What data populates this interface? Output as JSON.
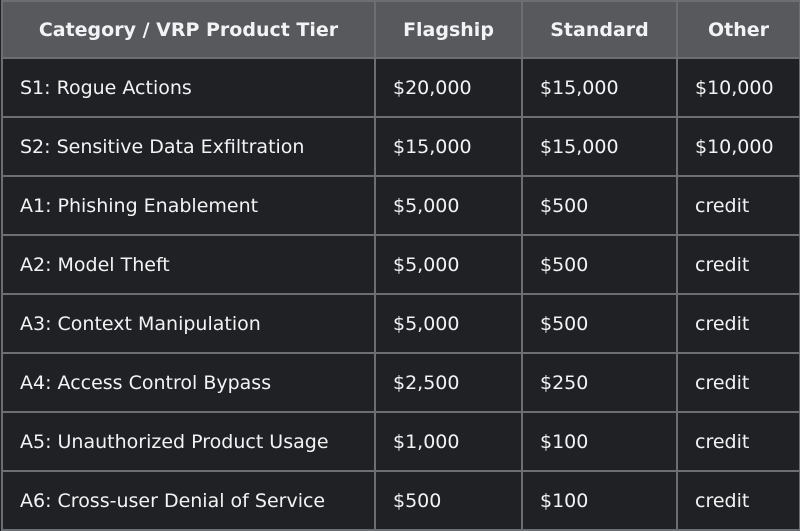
{
  "table": {
    "header": [
      "Category / VRP Product Tier",
      "Flagship",
      "Standard",
      "Other"
    ],
    "rows": [
      [
        "S1: Rogue Actions",
        "$20,000",
        "$15,000",
        "$10,000"
      ],
      [
        "S2: Sensitive Data Exfiltration",
        "$15,000",
        "$15,000",
        "$10,000"
      ],
      [
        "A1: Phishing Enablement",
        "$5,000",
        "$500",
        "credit"
      ],
      [
        "A2: Model Theft",
        "$5,000",
        "$500",
        "credit"
      ],
      [
        "A3: Context Manipulation",
        "$5,000",
        "$500",
        "credit"
      ],
      [
        "A4: Access Control Bypass",
        "$2,500",
        "$250",
        "credit"
      ],
      [
        "A5: Unauthorized Product Usage",
        "$1,000",
        "$100",
        "credit"
      ],
      [
        "A6: Cross-user Denial of Service",
        "$500",
        "$100",
        "credit"
      ]
    ]
  }
}
